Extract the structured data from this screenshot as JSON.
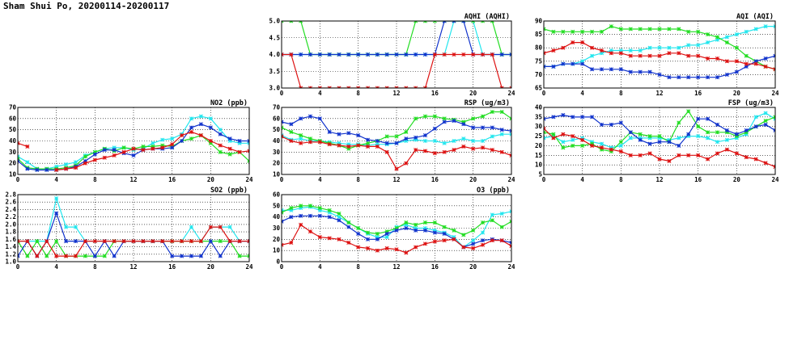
{
  "title": "Sham Shui Po, 20200114-20200117",
  "colors": {
    "series1": "#dd1111",
    "series2": "#1133cc",
    "series3": "#22dd22",
    "series4": "#22e6ee"
  },
  "chart_data": [
    {
      "id": "aqhi",
      "type": "line",
      "title": "AQHI (AQHI)",
      "xlim": [
        0,
        24
      ],
      "ylim": [
        3.0,
        5.0
      ],
      "xticks": [
        "0",
        "4",
        "8",
        "12",
        "16",
        "20",
        "24"
      ],
      "yticks": [
        "3.0",
        "3.5",
        "4.0",
        "4.5",
        "5.0"
      ],
      "grid": true,
      "x": [
        0,
        1,
        2,
        3,
        4,
        5,
        6,
        7,
        8,
        9,
        10,
        11,
        12,
        13,
        14,
        15,
        16,
        17,
        18,
        19,
        20,
        21,
        22,
        23,
        24
      ],
      "series": [
        {
          "values": [
            4,
            4,
            3,
            3,
            3,
            3,
            3,
            3,
            3,
            3,
            3,
            3,
            3,
            3,
            3,
            3,
            4,
            4,
            4,
            4,
            4,
            4,
            4,
            3,
            3
          ]
        },
        {
          "values": [
            4,
            4,
            4,
            4,
            4,
            4,
            4,
            4,
            4,
            4,
            4,
            4,
            4,
            4,
            4,
            4,
            4,
            5,
            5,
            5,
            4,
            4,
            4,
            4,
            4
          ]
        },
        {
          "values": [
            5,
            5,
            5,
            4,
            4,
            4,
            4,
            4,
            4,
            4,
            4,
            4,
            4,
            4,
            5,
            5,
            5,
            5,
            5,
            5,
            5,
            5,
            5,
            4,
            4
          ]
        },
        {
          "values": [
            4,
            4,
            4,
            4,
            4,
            4,
            4,
            4,
            4,
            4,
            4,
            4,
            4,
            4,
            4,
            4,
            4,
            4,
            5,
            5,
            5,
            4,
            4,
            4,
            4
          ]
        }
      ]
    },
    {
      "id": "aqi",
      "type": "line",
      "title": "AQI (AQI)",
      "xlim": [
        0,
        24
      ],
      "ylim": [
        65,
        90
      ],
      "xticks": [
        "0",
        "4",
        "8",
        "12",
        "16",
        "20",
        "24"
      ],
      "yticks": [
        "65",
        "70",
        "75",
        "80",
        "85",
        "90"
      ],
      "grid": true,
      "x": [
        0,
        1,
        2,
        3,
        4,
        5,
        6,
        7,
        8,
        9,
        10,
        11,
        12,
        13,
        14,
        15,
        16,
        17,
        18,
        19,
        20,
        21,
        22,
        23,
        24
      ],
      "series": [
        {
          "values": [
            78,
            79,
            80,
            82,
            82,
            80,
            79,
            78,
            78,
            77,
            77,
            77,
            77,
            78,
            78,
            77,
            77,
            76,
            76,
            75,
            75,
            74,
            74,
            73,
            72
          ]
        },
        {
          "values": [
            73,
            73,
            74,
            74,
            74,
            72,
            72,
            72,
            72,
            71,
            71,
            71,
            70,
            69,
            69,
            69,
            69,
            69,
            69,
            70,
            71,
            73,
            75,
            76,
            77
          ]
        },
        {
          "values": [
            87,
            86,
            86,
            86,
            86,
            86,
            86,
            88,
            87,
            87,
            87,
            87,
            87,
            87,
            87,
            86,
            86,
            85,
            84,
            82,
            80,
            77,
            75,
            73,
            72
          ]
        },
        {
          "values": [
            73,
            73,
            74,
            74,
            75,
            77,
            78,
            79,
            79,
            79,
            79,
            80,
            80,
            80,
            80,
            81,
            81,
            82,
            83,
            84,
            85,
            86,
            87,
            88,
            88
          ]
        }
      ]
    },
    {
      "id": "no2",
      "type": "line",
      "title": "NO2 (ppb)",
      "xlim": [
        0,
        24
      ],
      "ylim": [
        10,
        70
      ],
      "xticks": [
        "0",
        "4",
        "8",
        "12",
        "16",
        "20",
        "24"
      ],
      "yticks": [
        "10",
        "20",
        "30",
        "40",
        "50",
        "60",
        "70"
      ],
      "grid": true,
      "x": [
        0,
        1,
        2,
        3,
        4,
        5,
        6,
        7,
        8,
        9,
        10,
        11,
        12,
        13,
        14,
        15,
        16,
        17,
        18,
        19,
        20,
        21,
        22,
        23,
        24
      ],
      "series": [
        {
          "values": [
            38,
            35,
            null,
            null,
            14,
            15,
            16,
            20,
            23,
            25,
            27,
            30,
            33,
            32,
            33,
            34,
            37,
            45,
            48,
            45,
            40,
            36,
            33,
            30,
            31
          ]
        },
        {
          "values": [
            22,
            15,
            14,
            14,
            14,
            15,
            17,
            22,
            28,
            32,
            32,
            29,
            27,
            32,
            33,
            33,
            34,
            40,
            52,
            55,
            52,
            46,
            42,
            40,
            40
          ]
        },
        {
          "values": [
            24,
            16,
            15,
            15,
            15,
            16,
            18,
            26,
            30,
            33,
            31,
            34,
            33,
            35,
            35,
            36,
            35,
            40,
            42,
            45,
            38,
            30,
            28,
            30,
            22
          ]
        },
        {
          "values": [
            26,
            21,
            15,
            15,
            17,
            19,
            21,
            27,
            30,
            33,
            34,
            34,
            32,
            33,
            38,
            41,
            42,
            46,
            60,
            62,
            60,
            50,
            40,
            38,
            38
          ]
        }
      ]
    },
    {
      "id": "rsp",
      "type": "line",
      "title": "RSP (ug/m3)",
      "xlim": [
        0,
        24
      ],
      "ylim": [
        10,
        70
      ],
      "xticks": [
        "0",
        "4",
        "8",
        "12",
        "16",
        "20",
        "24"
      ],
      "yticks": [
        "10",
        "20",
        "30",
        "40",
        "50",
        "60",
        "70"
      ],
      "grid": true,
      "x": [
        0,
        1,
        2,
        3,
        4,
        5,
        6,
        7,
        8,
        9,
        10,
        11,
        12,
        13,
        14,
        15,
        16,
        17,
        18,
        19,
        20,
        21,
        22,
        23,
        24
      ],
      "series": [
        {
          "values": [
            44,
            40,
            38,
            39,
            39,
            37,
            36,
            35,
            36,
            35,
            35,
            30,
            15,
            20,
            32,
            31,
            29,
            30,
            32,
            35,
            33,
            34,
            32,
            30,
            27
          ]
        },
        {
          "values": [
            57,
            55,
            60,
            62,
            60,
            48,
            46,
            47,
            45,
            41,
            40,
            38,
            38,
            42,
            43,
            45,
            51,
            57,
            58,
            55,
            52,
            52,
            52,
            50,
            49
          ]
        },
        {
          "values": [
            52,
            48,
            45,
            42,
            40,
            38,
            36,
            33,
            36,
            38,
            40,
            44,
            44,
            48,
            60,
            62,
            62,
            60,
            59,
            57,
            60,
            62,
            66,
            66,
            60
          ]
        },
        {
          "values": [
            45,
            41,
            42,
            40,
            40,
            39,
            38,
            37,
            37,
            36,
            37,
            37,
            38,
            40,
            41,
            40,
            40,
            38,
            40,
            42,
            40,
            40,
            44,
            46,
            46
          ]
        }
      ]
    },
    {
      "id": "fsp",
      "type": "line",
      "title": "FSP (ug/m3)",
      "xlim": [
        0,
        24
      ],
      "ylim": [
        5,
        40
      ],
      "xticks": [
        "0",
        "4",
        "8",
        "12",
        "16",
        "20",
        "24"
      ],
      "yticks": [
        "5",
        "10",
        "15",
        "20",
        "25",
        "30",
        "35",
        "40"
      ],
      "grid": true,
      "x": [
        0,
        1,
        2,
        3,
        4,
        5,
        6,
        7,
        8,
        9,
        10,
        11,
        12,
        13,
        14,
        15,
        16,
        17,
        18,
        19,
        20,
        21,
        22,
        23,
        24
      ],
      "series": [
        {
          "values": [
            29,
            24,
            26,
            25,
            23,
            20,
            19,
            18,
            17,
            15,
            15,
            16,
            13,
            12,
            15,
            15,
            15,
            13,
            16,
            18,
            16,
            14,
            13,
            11,
            9
          ]
        },
        {
          "values": [
            34,
            35,
            36,
            35,
            35,
            35,
            31,
            31,
            32,
            27,
            23,
            21,
            22,
            22,
            20,
            26,
            34,
            34,
            31,
            28,
            26,
            28,
            30,
            31,
            28
          ]
        },
        {
          "values": [
            27,
            26,
            19,
            20,
            20,
            21,
            18,
            17,
            22,
            27,
            26,
            25,
            25,
            22,
            32,
            38,
            30,
            27,
            27,
            27,
            25,
            27,
            30,
            33,
            35
          ]
        },
        {
          "values": [
            24,
            25,
            22,
            23,
            24,
            22,
            21,
            19,
            20,
            24,
            24,
            24,
            24,
            23,
            24,
            25,
            25,
            24,
            22,
            23,
            24,
            26,
            35,
            37,
            34
          ]
        }
      ]
    },
    {
      "id": "so2",
      "type": "line",
      "title": "SO2 (ppb)",
      "xlim": [
        0,
        24
      ],
      "ylim": [
        1.0,
        2.8
      ],
      "xticks": [
        "0",
        "4",
        "8",
        "12",
        "16",
        "20",
        "24"
      ],
      "yticks": [
        "1.0",
        "1.2",
        "1.4",
        "1.6",
        "1.8",
        "2.0",
        "2.2",
        "2.4",
        "2.6",
        "2.8"
      ],
      "grid": true,
      "x": [
        0,
        1,
        2,
        3,
        4,
        5,
        6,
        7,
        8,
        9,
        10,
        11,
        12,
        13,
        14,
        15,
        16,
        17,
        18,
        19,
        20,
        21,
        22,
        23,
        24
      ],
      "series": [
        {
          "values": [
            1.55,
            1.55,
            1.15,
            1.55,
            1.15,
            1.15,
            1.15,
            1.55,
            1.55,
            1.55,
            1.55,
            1.55,
            1.55,
            1.55,
            1.55,
            1.55,
            1.55,
            1.55,
            1.55,
            1.55,
            1.93,
            1.93,
            1.55,
            1.55,
            1.55
          ]
        },
        {
          "values": [
            1.15,
            1.55,
            1.15,
            1.55,
            2.3,
            1.55,
            1.55,
            1.55,
            1.15,
            1.55,
            1.15,
            1.55,
            1.55,
            1.55,
            1.55,
            1.55,
            1.15,
            1.15,
            1.15,
            1.15,
            1.55,
            1.15,
            1.55,
            1.55,
            1.55
          ]
        },
        {
          "values": [
            1.55,
            1.15,
            1.55,
            1.15,
            1.55,
            1.15,
            1.15,
            1.15,
            1.15,
            1.15,
            1.55,
            1.55,
            1.55,
            1.55,
            1.55,
            1.55,
            1.55,
            1.55,
            1.55,
            1.55,
            1.55,
            1.55,
            1.55,
            1.15,
            1.15
          ]
        },
        {
          "values": [
            1.55,
            1.55,
            1.55,
            1.55,
            2.7,
            1.93,
            1.93,
            1.55,
            1.55,
            1.55,
            1.55,
            1.55,
            1.55,
            1.55,
            1.55,
            1.55,
            1.55,
            1.55,
            1.93,
            1.55,
            1.93,
            1.93,
            1.93,
            1.55,
            1.55
          ]
        }
      ]
    },
    {
      "id": "o3",
      "type": "line",
      "title": "O3 (ppb)",
      "xlim": [
        0,
        24
      ],
      "ylim": [
        0,
        60
      ],
      "xticks": [
        "0",
        "4",
        "8",
        "12",
        "16",
        "20",
        "24"
      ],
      "yticks": [
        "0",
        "10",
        "20",
        "30",
        "40",
        "50",
        "60"
      ],
      "grid": true,
      "x": [
        0,
        1,
        2,
        3,
        4,
        5,
        6,
        7,
        8,
        9,
        10,
        11,
        12,
        13,
        14,
        15,
        16,
        17,
        18,
        19,
        20,
        21,
        22,
        23,
        24
      ],
      "series": [
        {
          "values": [
            15,
            17,
            33,
            27,
            22,
            21,
            20,
            17,
            13,
            12,
            10,
            12,
            11,
            8,
            13,
            16,
            18,
            19,
            20,
            13,
            12,
            15,
            19,
            19,
            14
          ]
        },
        {
          "values": [
            36,
            40,
            41,
            41,
            41,
            40,
            37,
            31,
            25,
            20,
            20,
            25,
            28,
            30,
            28,
            28,
            26,
            25,
            20,
            13,
            16,
            19,
            20,
            19,
            17
          ]
        },
        {
          "values": [
            44,
            48,
            50,
            50,
            48,
            46,
            43,
            35,
            30,
            26,
            25,
            27,
            30,
            35,
            33,
            35,
            35,
            31,
            28,
            24,
            28,
            35,
            37,
            31,
            36
          ]
        },
        {
          "values": [
            46,
            46,
            48,
            49,
            46,
            44,
            40,
            35,
            30,
            25,
            22,
            22,
            31,
            33,
            30,
            30,
            28,
            26,
            22,
            13,
            19,
            26,
            42,
            43,
            45
          ]
        }
      ]
    }
  ]
}
